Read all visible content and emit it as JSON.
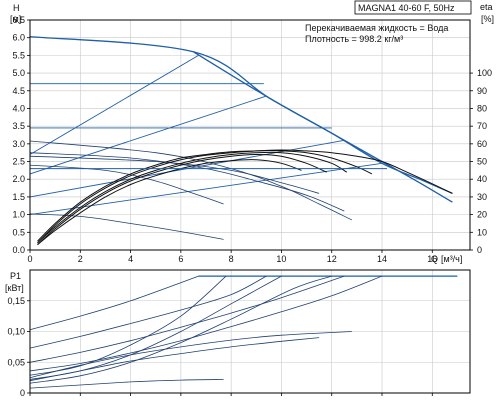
{
  "chart_data": [
    {
      "type": "line",
      "title": "MAGNA1 40-60 F, 50Hz",
      "annotations": [
        "Перекачиваемая жидкость = Вода",
        "Плотность = 998.2 кг/м³"
      ],
      "ylabel": "H",
      "yunit": "[м]",
      "y2label": "eta",
      "y2unit": "[%]",
      "xlabel": "Q",
      "xunit": "[м³/ч]",
      "xlim": [
        0,
        17.5
      ],
      "ylim": [
        0,
        6.5
      ],
      "y2lim": [
        0,
        130
      ],
      "x_ticks": [
        "0",
        "2",
        "4",
        "6",
        "8",
        "10",
        "12",
        "14",
        "16"
      ],
      "y_ticks": [
        "0.0",
        "0.5",
        "1.0",
        "1.5",
        "2.0",
        "2.5",
        "3.0",
        "3.5",
        "4.0",
        "4.5",
        "5.0",
        "5.5",
        "6.0",
        "6.5"
      ],
      "y2_ticks": [
        "0",
        "10",
        "20",
        "30",
        "40",
        "50",
        "60",
        "70",
        "80",
        "90",
        "100"
      ],
      "grid": true,
      "series": [
        {
          "kind": "max-curve",
          "points": [
            [
              0,
              6.03
            ],
            [
              6.5,
              5.6
            ],
            [
              9.5,
              4.3
            ],
            [
              12,
              3.3
            ],
            [
              14,
              2.5
            ],
            [
              15.5,
              1.9
            ],
            [
              16.8,
              1.35
            ]
          ]
        },
        {
          "kind": "max-curve",
          "points": [
            [
              6.5,
              5.6
            ],
            [
              9.5,
              4.3
            ],
            [
              12,
              3.3
            ],
            [
              14,
              2.45
            ],
            [
              15.5,
              2.0
            ],
            [
              16.8,
              1.6
            ]
          ]
        },
        {
          "kind": "proportional-pressure",
          "points": [
            [
              0,
              2.7
            ],
            [
              6.7,
              5.5
            ]
          ]
        },
        {
          "kind": "proportional-pressure",
          "points": [
            [
              0,
              2.15
            ],
            [
              9.4,
              4.35
            ]
          ]
        },
        {
          "kind": "proportional-pressure",
          "points": [
            [
              0,
              1.5
            ],
            [
              12.5,
              3.1
            ]
          ]
        },
        {
          "kind": "proportional-pressure",
          "points": [
            [
              0,
              1.0
            ],
            [
              14,
              2.45
            ]
          ]
        },
        {
          "kind": "constant-curve",
          "points": [
            [
              0,
              3.08
            ],
            [
              5,
              2.75
            ],
            [
              8,
              2.3
            ],
            [
              10,
              1.8
            ],
            [
              11.5,
              1.3
            ],
            [
              12.8,
              0.85
            ]
          ]
        },
        {
          "kind": "constant-curve",
          "points": [
            [
              0,
              2.75
            ],
            [
              4,
              2.6
            ],
            [
              7,
              2.3
            ],
            [
              9,
              1.95
            ],
            [
              11,
              1.55
            ],
            [
              12.5,
              1.1
            ]
          ]
        },
        {
          "kind": "constant-curve",
          "points": [
            [
              0,
              2.65
            ],
            [
              5,
              2.5
            ],
            [
              8,
              2.25
            ],
            [
              10,
              1.9
            ],
            [
              11.5,
              1.6
            ]
          ]
        },
        {
          "kind": "constant-curve",
          "points": [
            [
              0,
              2.4
            ],
            [
              3,
              2.25
            ],
            [
              5,
              1.95
            ],
            [
              6.5,
              1.6
            ],
            [
              7.7,
              1.3
            ]
          ]
        },
        {
          "kind": "constant-curve",
          "points": [
            [
              0,
              1.02
            ],
            [
              2,
              0.95
            ],
            [
              4,
              0.75
            ],
            [
              6,
              0.52
            ],
            [
              7.7,
              0.3
            ]
          ]
        },
        {
          "kind": "eta",
          "points": [
            [
              0.3,
              5
            ],
            [
              1,
              15
            ],
            [
              2,
              27
            ],
            [
              3,
              36
            ],
            [
              4,
              43
            ],
            [
              5,
              48
            ],
            [
              6,
              52
            ],
            [
              7,
              54
            ],
            [
              8,
              55.5
            ],
            [
              9,
              56
            ],
            [
              10,
              56.5
            ],
            [
              11,
              56
            ],
            [
              12,
              55
            ],
            [
              13,
              53
            ],
            [
              14,
              50
            ],
            [
              15,
              44
            ],
            [
              16.8,
              32
            ]
          ]
        },
        {
          "kind": "eta",
          "points": [
            [
              0.3,
              4
            ],
            [
              1,
              14
            ],
            [
              2,
              26
            ],
            [
              3,
              35
            ],
            [
              4,
              42
            ],
            [
              5,
              47
            ],
            [
              6,
              51
            ],
            [
              7,
              53.5
            ],
            [
              8,
              55
            ],
            [
              9,
              56
            ],
            [
              10,
              56
            ],
            [
              11,
              55
            ],
            [
              12,
              52
            ],
            [
              13,
              47
            ],
            [
              13.6,
              43
            ]
          ]
        },
        {
          "kind": "eta",
          "points": [
            [
              0.3,
              4
            ],
            [
              1,
              13
            ],
            [
              2,
              24
            ],
            [
              3,
              33
            ],
            [
              4,
              40
            ],
            [
              5,
              45
            ],
            [
              6,
              49
            ],
            [
              7,
              52
            ],
            [
              8,
              54
            ],
            [
              9,
              55
            ],
            [
              10,
              55
            ],
            [
              11,
              53
            ],
            [
              12,
              49
            ],
            [
              12.6,
              44
            ]
          ]
        },
        {
          "kind": "eta",
          "points": [
            [
              0.3,
              3
            ],
            [
              1,
              12
            ],
            [
              2,
              23
            ],
            [
              3,
              32
            ],
            [
              4,
              39
            ],
            [
              5,
              44
            ],
            [
              6,
              48
            ],
            [
              7,
              51
            ],
            [
              8,
              53
            ],
            [
              9,
              54
            ],
            [
              10,
              53
            ],
            [
              11,
              49
            ],
            [
              11.8,
              44
            ]
          ]
        },
        {
          "kind": "eta",
          "points": [
            [
              0.3,
              3
            ],
            [
              1,
              11
            ],
            [
              2,
              21
            ],
            [
              3,
              30
            ],
            [
              4,
              37
            ],
            [
              5,
              42
            ],
            [
              6,
              46
            ],
            [
              7,
              49
            ],
            [
              8,
              50.5
            ],
            [
              9,
              51
            ],
            [
              10,
              49
            ],
            [
              10.8,
              45
            ]
          ]
        }
      ]
    },
    {
      "type": "line",
      "ylabel": "P1",
      "yunit": "[кВт]",
      "xlim": [
        0,
        17.5
      ],
      "ylim": [
        0,
        0.2
      ],
      "y_ticks": [
        "0",
        "0,05",
        "0,10",
        "0,15"
      ],
      "grid": true,
      "series": [
        {
          "kind": "max-power",
          "points": [
            [
              6.7,
              0.19
            ],
            [
              17,
              0.19
            ]
          ]
        },
        {
          "kind": "power",
          "points": [
            [
              0,
              0.103
            ],
            [
              2,
              0.125
            ],
            [
              4,
              0.15
            ],
            [
              6.7,
              0.19
            ]
          ]
        },
        {
          "kind": "power",
          "points": [
            [
              0,
              0.073
            ],
            [
              2,
              0.092
            ],
            [
              4,
              0.113
            ],
            [
              6,
              0.135
            ],
            [
              8,
              0.16
            ],
            [
              9.4,
              0.19
            ]
          ]
        },
        {
          "kind": "power",
          "points": [
            [
              0,
              0.05
            ],
            [
              2,
              0.066
            ],
            [
              4,
              0.085
            ],
            [
              6,
              0.107
            ],
            [
              8,
              0.13
            ],
            [
              10,
              0.155
            ],
            [
              12.5,
              0.19
            ]
          ]
        },
        {
          "kind": "power",
          "points": [
            [
              0,
              0.036
            ],
            [
              2,
              0.048
            ],
            [
              4,
              0.065
            ],
            [
              6,
              0.085
            ],
            [
              8,
              0.108
            ],
            [
              10,
              0.132
            ],
            [
              12,
              0.158
            ],
            [
              14,
              0.19
            ]
          ]
        },
        {
          "kind": "power",
          "points": [
            [
              0,
              0.029
            ],
            [
              2,
              0.044
            ],
            [
              4,
              0.078
            ],
            [
              6,
              0.125
            ],
            [
              7.8,
              0.19
            ]
          ]
        },
        {
          "kind": "power",
          "points": [
            [
              0,
              0.022
            ],
            [
              2,
              0.036
            ],
            [
              4,
              0.062
            ],
            [
              6,
              0.1
            ],
            [
              8,
              0.145
            ],
            [
              10,
              0.19
            ]
          ]
        },
        {
          "kind": "power",
          "points": [
            [
              0,
              0.016
            ],
            [
              2,
              0.028
            ],
            [
              4,
              0.05
            ],
            [
              6,
              0.082
            ],
            [
              8,
              0.12
            ],
            [
              10.5,
              0.17
            ],
            [
              12,
              0.19
            ]
          ]
        },
        {
          "kind": "power",
          "points": [
            [
              0,
              0.025
            ],
            [
              2,
              0.045
            ],
            [
              4,
              0.062
            ],
            [
              6,
              0.075
            ],
            [
              8,
              0.086
            ],
            [
              10,
              0.094
            ],
            [
              12.8,
              0.1
            ]
          ]
        },
        {
          "kind": "power",
          "points": [
            [
              0,
              0.02
            ],
            [
              2,
              0.036
            ],
            [
              4,
              0.052
            ],
            [
              6,
              0.064
            ],
            [
              8,
              0.075
            ],
            [
              10,
              0.084
            ],
            [
              11.5,
              0.09
            ]
          ]
        },
        {
          "kind": "power",
          "points": [
            [
              0,
              0.008
            ],
            [
              2,
              0.013
            ],
            [
              4,
              0.018
            ],
            [
              6,
              0.021
            ],
            [
              7.7,
              0.022
            ]
          ]
        }
      ]
    }
  ]
}
